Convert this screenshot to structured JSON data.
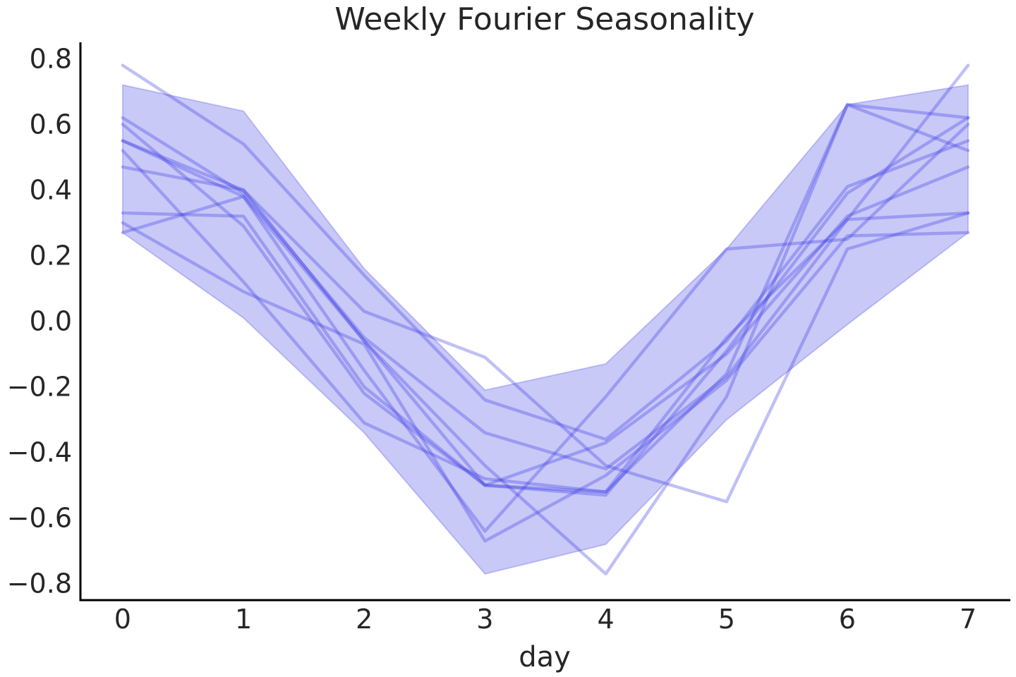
{
  "chart_data": {
    "type": "line",
    "title": "Weekly Fourier Seasonality",
    "xlabel": "day",
    "ylabel": "",
    "x": [
      0,
      1,
      2,
      3,
      4,
      5,
      6,
      7
    ],
    "xlim": [
      -0.35,
      7.35
    ],
    "ylim": [
      -0.85,
      0.85
    ],
    "xticks": [
      0,
      1,
      2,
      3,
      4,
      5,
      6,
      7
    ],
    "xtick_labels": [
      "0",
      "1",
      "2",
      "3",
      "4",
      "5",
      "6",
      "7"
    ],
    "yticks": [
      0.8,
      0.6,
      0.4,
      0.2,
      0.0,
      -0.2,
      -0.4,
      -0.6,
      -0.8
    ],
    "ytick_labels": [
      "0.8",
      "0.6",
      "0.4",
      "0.2",
      "0.0",
      "−0.2",
      "−0.4",
      "−0.6",
      "−0.8"
    ],
    "grid": false,
    "band": {
      "upper": [
        0.72,
        0.64,
        0.16,
        -0.21,
        -0.13,
        0.22,
        0.66,
        0.72
      ],
      "lower": [
        0.27,
        0.01,
        -0.34,
        -0.77,
        -0.68,
        -0.3,
        -0.01,
        0.27
      ]
    },
    "series": [
      {
        "values": [
          0.78,
          0.54,
          0.14,
          -0.24,
          -0.36,
          -0.06,
          0.41,
          0.55
        ]
      },
      {
        "values": [
          0.62,
          0.39,
          -0.05,
          -0.34,
          -0.45,
          -0.17,
          0.31,
          0.33
        ]
      },
      {
        "values": [
          0.6,
          0.29,
          -0.22,
          -0.5,
          -0.53,
          -0.09,
          0.39,
          0.62
        ]
      },
      {
        "values": [
          0.55,
          0.4,
          0.03,
          -0.11,
          -0.44,
          -0.55,
          0.22,
          0.33
        ]
      },
      {
        "values": [
          0.55,
          0.38,
          -0.15,
          -0.64,
          -0.23,
          0.22,
          0.25,
          0.6
        ]
      },
      {
        "values": [
          0.52,
          0.12,
          -0.31,
          -0.48,
          -0.52,
          -0.05,
          0.31,
          0.78
        ]
      },
      {
        "values": [
          0.47,
          0.4,
          -0.06,
          -0.44,
          -0.77,
          -0.23,
          0.66,
          0.52
        ]
      },
      {
        "values": [
          0.33,
          0.32,
          -0.2,
          -0.5,
          -0.37,
          -0.1,
          0.32,
          0.47
        ]
      },
      {
        "values": [
          0.3,
          0.09,
          -0.07,
          -0.67,
          -0.47,
          -0.18,
          0.26,
          0.27
        ]
      },
      {
        "values": [
          0.27,
          0.38,
          -0.06,
          -0.5,
          -0.52,
          -0.16,
          0.66,
          0.62
        ]
      }
    ],
    "colors": {
      "line": "#3a3ae6",
      "band": "#6565ea",
      "axis": "#000000",
      "text": "#262626"
    }
  }
}
